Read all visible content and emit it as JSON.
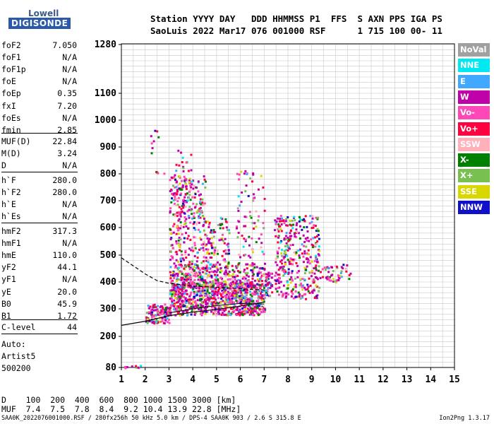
{
  "logo": {
    "top": "Lowell",
    "main": "DIGISONDE"
  },
  "header": {
    "row1": "Station YYYY DAY   DDD HHMMSS P1  FFS  S AXN PPS IGA PS",
    "row2": "SaoLuis 2022 Mar17 076 001000 RSF      1 715 100 00- 11"
  },
  "params_group1": [
    {
      "name": "foF2",
      "value": "7.050"
    },
    {
      "name": "foF1",
      "value": "N/A"
    },
    {
      "name": "foF1p",
      "value": "N/A"
    },
    {
      "name": "foE",
      "value": "N/A"
    },
    {
      "name": "foEp",
      "value": "0.35"
    },
    {
      "name": "fxI",
      "value": "7.20"
    },
    {
      "name": "foEs",
      "value": "N/A"
    },
    {
      "name": "fmin",
      "value": "2.85"
    }
  ],
  "params_group2": [
    {
      "name": "MUF(D)",
      "value": "22.84"
    },
    {
      "name": "M(D)",
      "value": "3.24"
    },
    {
      "name": "D",
      "value": "N/A"
    }
  ],
  "params_group3": [
    {
      "name": "h`F",
      "value": "280.0"
    },
    {
      "name": "h`F2",
      "value": "280.0"
    },
    {
      "name": "h`E",
      "value": "N/A"
    },
    {
      "name": "h`Es",
      "value": "N/A"
    }
  ],
  "params_group4": [
    {
      "name": "hmF2",
      "value": "317.3"
    },
    {
      "name": "hmF1",
      "value": "N/A"
    },
    {
      "name": "hmE",
      "value": "110.0"
    },
    {
      "name": "yF2",
      "value": "44.1"
    },
    {
      "name": "yF1",
      "value": "N/A"
    },
    {
      "name": "yE",
      "value": "20.0"
    },
    {
      "name": "B0",
      "value": "45.9"
    },
    {
      "name": "B1",
      "value": "1.72"
    }
  ],
  "params_group5": [
    {
      "name": "C-level",
      "value": "44"
    }
  ],
  "auto": {
    "line1": "Auto:",
    "line2": "Artist5",
    "line3": "500200"
  },
  "legend": [
    {
      "label": "NoVal",
      "color": "#a0a0a0"
    },
    {
      "label": "NNE",
      "color": "#00e8f0"
    },
    {
      "label": "E",
      "color": "#40a8ff"
    },
    {
      "label": "W",
      "color": "#c000a8"
    },
    {
      "label": "Vo-",
      "color": "#ff48b8"
    },
    {
      "label": "Vo+",
      "color": "#ff0040"
    },
    {
      "label": "SSW",
      "color": "#ffb0b8"
    },
    {
      "label": "X-",
      "color": "#008000"
    },
    {
      "label": "X+",
      "color": "#78c050"
    },
    {
      "label": "SSE",
      "color": "#d8d800"
    },
    {
      "label": "NNW",
      "color": "#1010c8"
    }
  ],
  "bottom": {
    "row1": "D    100  200  400  600  800 1000 1500 3000 [km]",
    "row2": "MUF  7.4  7.5  7.8  8.4  9.2 10.4 13.9 22.8 [MHz]"
  },
  "footer": {
    "left": "SAA0K_2022076001000.RSF / 280fx256h 50 kHz 5.0 km / DPS-4 SAA0K 903 / 2.6 S 315.8 E",
    "right": "Ion2Png 1.3.17"
  },
  "chart_data": {
    "type": "scatter",
    "x_ticks": [
      "1",
      "2",
      "3",
      "4",
      "5",
      "6",
      "7",
      "8",
      "9",
      "10",
      "11",
      "12",
      "13",
      "14",
      "15"
    ],
    "y_ticks": [
      "80",
      "200",
      "300",
      "400",
      "500",
      "600",
      "700",
      "800",
      "900",
      "1000",
      "1100",
      "1280"
    ],
    "xlim": [
      1,
      15
    ],
    "ylim": [
      80,
      1280
    ],
    "grid": true,
    "trace_curve": [
      [
        1,
        240
      ],
      [
        2,
        255
      ],
      [
        3,
        275
      ],
      [
        4,
        288
      ],
      [
        5,
        298
      ],
      [
        6,
        310
      ],
      [
        7,
        325
      ]
    ],
    "dashed_curve": [
      [
        1,
        490
      ],
      [
        1.5,
        460
      ],
      [
        2,
        430
      ],
      [
        2.5,
        405
      ],
      [
        3,
        395
      ],
      [
        4,
        385
      ],
      [
        5,
        380
      ],
      [
        6,
        375
      ],
      [
        7,
        370
      ]
    ],
    "profile_curve": [
      [
        3,
        285
      ],
      [
        4,
        300
      ],
      [
        5,
        312
      ],
      [
        6,
        320
      ],
      [
        7,
        318
      ]
    ]
  }
}
